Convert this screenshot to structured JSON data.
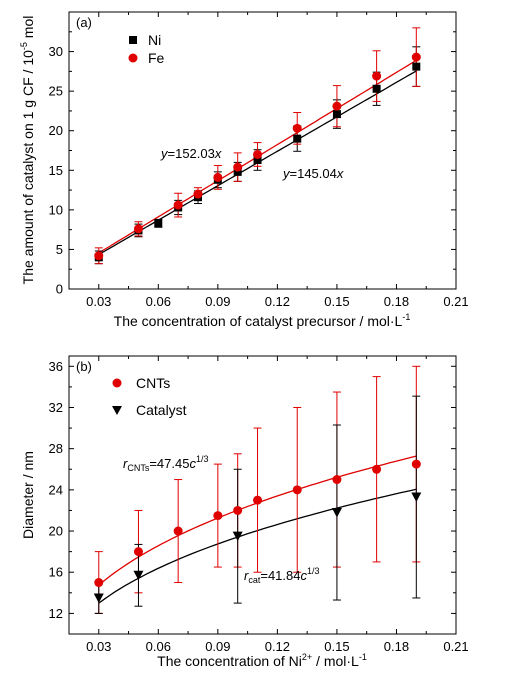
{
  "chart_data": [
    {
      "panel": "(a)",
      "type": "scatter",
      "xlabel": "The concentration of catalyst precursor / mol·L",
      "xlabel_sup": "-1",
      "ylabel": "The amount of catalyst on 1 g CF / 10",
      "ylabel_sup": "-5",
      "ylabel_tail": " mol",
      "xlim": [
        0.015,
        0.21
      ],
      "ylim": [
        0,
        35
      ],
      "xticks": [
        0.03,
        0.06,
        0.09,
        0.12,
        0.15,
        0.18,
        0.21
      ],
      "xtick_labels": [
        "0.03",
        "0.06",
        "0.09",
        "0.12",
        "0.15",
        "0.18",
        "0.21"
      ],
      "yticks": [
        0,
        5,
        10,
        15,
        20,
        25,
        30
      ],
      "ytick_labels": [
        "0",
        "5",
        "10",
        "15",
        "20",
        "25",
        "30"
      ],
      "grid": false,
      "legend_position": "top-left",
      "series": [
        {
          "name": "Ni",
          "marker": "square",
          "color": "#000000",
          "x": [
            0.03,
            0.05,
            0.06,
            0.07,
            0.08,
            0.09,
            0.1,
            0.11,
            0.13,
            0.15,
            0.17,
            0.19
          ],
          "y": [
            4.0,
            7.4,
            8.3,
            10.3,
            11.6,
            13.8,
            14.8,
            16.3,
            19.0,
            22.1,
            25.3,
            28.1
          ],
          "err": [
            0.8,
            0.8,
            0.5,
            0.9,
            0.8,
            1.0,
            1.2,
            1.3,
            1.6,
            1.8,
            2.1,
            2.5
          ],
          "fit_slope": 145.04,
          "fit_color": "#000000"
        },
        {
          "name": "Fe",
          "marker": "circle",
          "color": "#e00000",
          "x": [
            0.03,
            0.05,
            0.07,
            0.08,
            0.09,
            0.1,
            0.11,
            0.13,
            0.15,
            0.17,
            0.19
          ],
          "y": [
            4.2,
            7.6,
            10.6,
            12.0,
            14.1,
            15.4,
            17.0,
            20.3,
            23.1,
            26.9,
            29.3
          ],
          "err": [
            1.0,
            0.9,
            1.5,
            0.8,
            1.5,
            1.8,
            1.5,
            2.0,
            2.6,
            3.2,
            3.7
          ],
          "fit_slope": 152.03,
          "fit_color": "#e00000"
        }
      ],
      "annotations": {
        "fe_fit": {
          "y": "y",
          "eq": "=152.03",
          "x": "x"
        },
        "ni_fit": {
          "y": "y",
          "eq": "=145.04",
          "x": "x"
        }
      }
    },
    {
      "panel": "(b)",
      "type": "scatter",
      "xlabel": "The concentration of Ni",
      "xlabel_sup": "2+",
      "xlabel_tail": " / mol·L",
      "xlabel_sup2": "-1",
      "ylabel": "Diameter / nm",
      "xlim": [
        0.015,
        0.21
      ],
      "ylim": [
        10,
        37
      ],
      "xticks": [
        0.03,
        0.06,
        0.09,
        0.12,
        0.15,
        0.18,
        0.21
      ],
      "xtick_labels": [
        "0.03",
        "0.06",
        "0.09",
        "0.12",
        "0.15",
        "0.18",
        "0.21"
      ],
      "yticks": [
        12,
        16,
        20,
        24,
        28,
        32,
        36
      ],
      "ytick_labels": [
        "12",
        "16",
        "20",
        "24",
        "28",
        "32",
        "36"
      ],
      "grid": false,
      "legend_position": "top-left",
      "series": [
        {
          "name": "CNTs",
          "marker": "circle",
          "color": "#e00000",
          "x": [
            0.03,
            0.05,
            0.07,
            0.09,
            0.1,
            0.11,
            0.13,
            0.15,
            0.17,
            0.19
          ],
          "y": [
            15.0,
            18.0,
            20.0,
            21.5,
            22.0,
            23.0,
            24.0,
            25.0,
            26.0,
            26.5
          ],
          "err": [
            3.0,
            4.0,
            5.0,
            5.0,
            5.5,
            7.0,
            8.0,
            8.5,
            9.0,
            9.5
          ],
          "fit_coef": 47.45,
          "fit_color": "#e00000"
        },
        {
          "name": "Catalyst",
          "marker": "triangle-down",
          "color": "#000000",
          "x": [
            0.03,
            0.05,
            0.1,
            0.15,
            0.19
          ],
          "y": [
            13.5,
            15.7,
            19.5,
            21.8,
            23.3
          ],
          "err": [
            1.5,
            3.0,
            6.5,
            8.5,
            9.8
          ],
          "fit_coef": 41.84,
          "fit_color": "#000000"
        }
      ],
      "annotations": {
        "cnt_fit": {
          "r": "r",
          "sub": "CNTs",
          "eq": "=47.45",
          "c": "c",
          "sup": "1/3"
        },
        "cat_fit": {
          "r": "r",
          "sub": "cat",
          "eq": "=41.84",
          "c": "c",
          "sup": "1/3"
        }
      }
    }
  ]
}
